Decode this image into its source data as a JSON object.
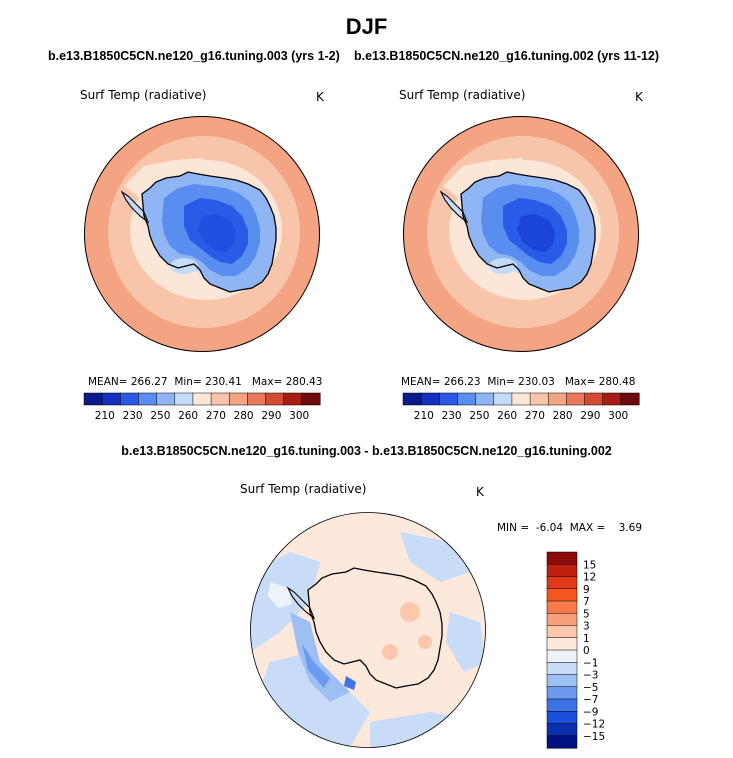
{
  "title": "DJF",
  "panels": [
    {
      "case": "b.e13.B1850C5CN.ne120_g16.tuning.003 (yrs 1-2)",
      "variable": "Surf Temp (radiative)",
      "units": "K",
      "stats": {
        "mean_label": "MEAN=",
        "mean": "266.27",
        "min_label": "Min=",
        "min": "230.41",
        "max_label": "Max=",
        "max": "280.43"
      }
    },
    {
      "case": "b.e13.B1850C5CN.ne120_g16.tuning.002 (yrs 11-12)",
      "variable": "Surf Temp (radiative)",
      "units": "K",
      "stats": {
        "mean_label": "MEAN=",
        "mean": "266.23",
        "min_label": "Min=",
        "min": "230.03",
        "max_label": "Max=",
        "max": "280.48"
      }
    }
  ],
  "diff": {
    "title": "b.e13.B1850C5CN.ne120_g16.tuning.003 - b.e13.B1850C5CN.ne120_g16.tuning.002",
    "variable": "Surf Temp (radiative)",
    "units": "K",
    "min_label": "MIN =",
    "min": "-6.04",
    "max_label": "MAX =",
    "max": "3.69"
  },
  "chart_data": [
    {
      "type": "heatmap",
      "projection": "south-polar stereographic",
      "title": "b.e13.B1850C5CN.ne120_g16.tuning.003 (yrs 1-2)",
      "field": "Surf Temp (radiative)",
      "units": "K",
      "mean": 266.27,
      "min": 230.41,
      "max": 280.43,
      "colorbar_levels": [
        210,
        230,
        250,
        260,
        270,
        280,
        290,
        300
      ],
      "colorbar_colors": [
        "#0a1a8a",
        "#1530c0",
        "#2a5ae6",
        "#5a8df0",
        "#8fb5f5",
        "#c5dbfa",
        "#fbe6d8",
        "#f8c5aa",
        "#f4a383",
        "#e9795a",
        "#d24b32",
        "#a51d14",
        "#6e0a0a"
      ]
    },
    {
      "type": "heatmap",
      "projection": "south-polar stereographic",
      "title": "b.e13.B1850C5CN.ne120_g16.tuning.002 (yrs 11-12)",
      "field": "Surf Temp (radiative)",
      "units": "K",
      "mean": 266.23,
      "min": 230.03,
      "max": 280.48,
      "colorbar_levels": [
        210,
        230,
        250,
        260,
        270,
        280,
        290,
        300
      ],
      "colorbar_colors": [
        "#0a1a8a",
        "#1530c0",
        "#2a5ae6",
        "#5a8df0",
        "#8fb5f5",
        "#c5dbfa",
        "#fbe6d8",
        "#f8c5aa",
        "#f4a383",
        "#e9795a",
        "#d24b32",
        "#a51d14",
        "#6e0a0a"
      ]
    },
    {
      "type": "heatmap",
      "projection": "south-polar stereographic",
      "title": "b.e13.B1850C5CN.ne120_g16.tuning.003 - b.e13.B1850C5CN.ne120_g16.tuning.002",
      "field": "Surf Temp (radiative)",
      "units": "K",
      "min": -6.04,
      "max": 3.69,
      "colorbar_levels": [
        "15",
        "12",
        "9",
        "7",
        "5",
        "3",
        "1",
        "0",
        "−1",
        "−3",
        "−5",
        "−7",
        "−9",
        "−12",
        "−15"
      ],
      "colorbar_colors": [
        "#8b0a0a",
        "#c0200f",
        "#e03a1a",
        "#f5561e",
        "#f87a4a",
        "#f9a07a",
        "#fcc7aa",
        "#fde8dc",
        "#eef3fb",
        "#c8dcf8",
        "#9dbff3",
        "#6c9aee",
        "#3e73e8",
        "#1a4fdc",
        "#0a30b0",
        "#001080"
      ]
    }
  ]
}
